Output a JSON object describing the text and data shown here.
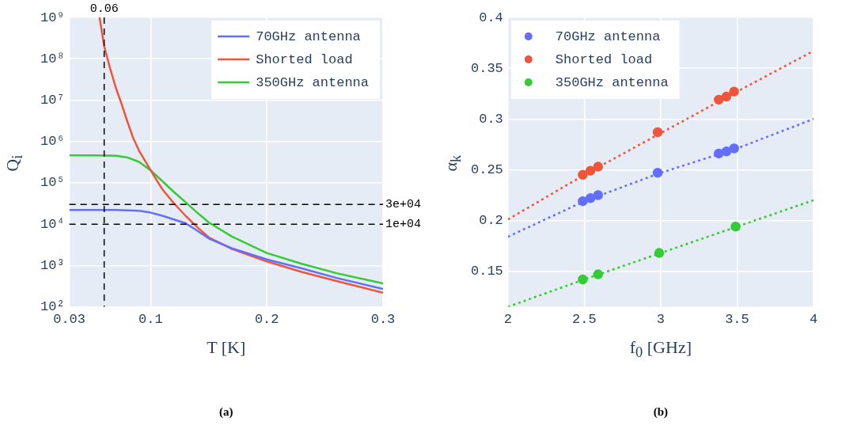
{
  "chart_data": [
    {
      "type": "line",
      "xlabel": "T [K]",
      "ylabel": "Q$_{i}$",
      "annotations": [
        "(a)"
      ],
      "log": "y",
      "grid": true,
      "legend": "top right",
      "marker": "none",
      "line_style": "solid",
      "xlim": [
        0.03,
        0.3
      ],
      "xticks": [
        0.03,
        0.1,
        0.2,
        0.3
      ],
      "ylim": [
        100,
        1000000000
      ],
      "yticks": [
        {
          "value": 100,
          "label": "10²"
        },
        {
          "value": 1000,
          "label": "10³"
        },
        {
          "value": 10000,
          "label": "10⁴"
        },
        {
          "value": 100000,
          "label": "10⁵"
        },
        {
          "value": 1000000,
          "label": "10⁶"
        },
        {
          "value": 10000000,
          "label": "10⁷"
        },
        {
          "value": 100000000,
          "label": "10⁸"
        },
        {
          "value": 1000000000,
          "label": "10⁹"
        }
      ],
      "ref_lines": [
        {
          "axis": "x",
          "value": 0.06,
          "label": "0.06",
          "color": "#000000",
          "line_style": "dashed"
        },
        {
          "axis": "y",
          "value": 30000,
          "label": "3e+04",
          "color": "#000000",
          "line_style": "dashed"
        },
        {
          "axis": "y",
          "value": 10000,
          "label": "1e+04",
          "color": "#000000",
          "line_style": "dashed"
        }
      ],
      "series": [
        {
          "name": "70GHz antenna",
          "color": "#636efa",
          "x": [
            0.03,
            0.05,
            0.07,
            0.08,
            0.09,
            0.1,
            0.11,
            0.12,
            0.13,
            0.14,
            0.15,
            0.17,
            0.2,
            0.23,
            0.26,
            0.3
          ],
          "values": [
            22000,
            22000,
            22000,
            21500,
            21000,
            19000,
            16000,
            13000,
            10500,
            7000,
            4500,
            2600,
            1400,
            850,
            500,
            270
          ]
        },
        {
          "name": "Shorted load",
          "color": "#ef553b",
          "x": [
            0.056,
            0.06,
            0.065,
            0.07,
            0.075,
            0.08,
            0.085,
            0.09,
            0.1,
            0.11,
            0.12,
            0.13,
            0.14,
            0.15,
            0.17,
            0.2,
            0.23,
            0.26,
            0.3
          ],
          "values": [
            1000000000,
            200000000,
            60000000,
            20000000,
            8000000,
            3000000,
            1200000,
            600000,
            200000,
            70000,
            32000,
            16000,
            8500,
            4800,
            2500,
            1250,
            700,
            420,
            220
          ]
        },
        {
          "name": "350GHz antenna",
          "color": "#33cc33",
          "x": [
            0.03,
            0.05,
            0.07,
            0.08,
            0.09,
            0.1,
            0.11,
            0.12,
            0.13,
            0.14,
            0.15,
            0.17,
            0.2,
            0.23,
            0.26,
            0.3
          ],
          "values": [
            460000,
            460000,
            450000,
            410000,
            320000,
            200000,
            110000,
            60000,
            34000,
            19000,
            11000,
            5000,
            2000,
            1100,
            650,
            370
          ]
        }
      ]
    },
    {
      "type": "scatter",
      "xlabel": "f$_{0}$ [GHz]",
      "ylabel": "α$_{k}$",
      "annotations": [
        "(b)"
      ],
      "grid": true,
      "legend": "top left",
      "marker": "circle",
      "xlim": [
        2,
        4
      ],
      "xticks": [
        2,
        2.5,
        3,
        3.5,
        4
      ],
      "ylim": [
        0.115,
        0.4
      ],
      "yticks": [
        0.15,
        0.2,
        0.25,
        0.3,
        0.35,
        0.4
      ],
      "series": [
        {
          "name": "70GHz antenna",
          "color": "#636efa",
          "x": [
            2.49,
            2.54,
            2.59,
            2.98,
            3.38,
            3.43,
            3.48
          ],
          "values": [
            0.219,
            0.222,
            0.225,
            0.247,
            0.266,
            0.268,
            0.271
          ]
        },
        {
          "name": "Shorted load",
          "color": "#ef553b",
          "x": [
            2.49,
            2.54,
            2.59,
            2.98,
            3.38,
            3.43,
            3.48
          ],
          "values": [
            0.245,
            0.249,
            0.253,
            0.287,
            0.319,
            0.322,
            0.327
          ]
        },
        {
          "name": "350GHz antenna",
          "color": "#33cc33",
          "x": [
            2.49,
            2.59,
            2.99,
            3.49
          ],
          "values": [
            0.142,
            0.147,
            0.168,
            0.194
          ]
        },
        {
          "type": "line",
          "color": "#636efa",
          "line_style": "dotted",
          "marker": "none",
          "x": [
            2,
            2.5,
            3,
            3.5,
            4
          ],
          "values": [
            0.184,
            0.219,
            0.247,
            0.271,
            0.3
          ]
        },
        {
          "type": "line",
          "color": "#ef553b",
          "line_style": "dotted",
          "marker": "none",
          "x": [
            2,
            2.5,
            3,
            3.5,
            4
          ],
          "values": [
            0.201,
            0.245,
            0.286,
            0.327,
            0.367
          ]
        },
        {
          "type": "line",
          "color": "#33cc33",
          "line_style": "dotted",
          "marker": "none",
          "x": [
            2,
            2.5,
            3,
            3.5,
            4
          ],
          "values": [
            0.115,
            0.142,
            0.168,
            0.194,
            0.22
          ]
        }
      ]
    }
  ]
}
